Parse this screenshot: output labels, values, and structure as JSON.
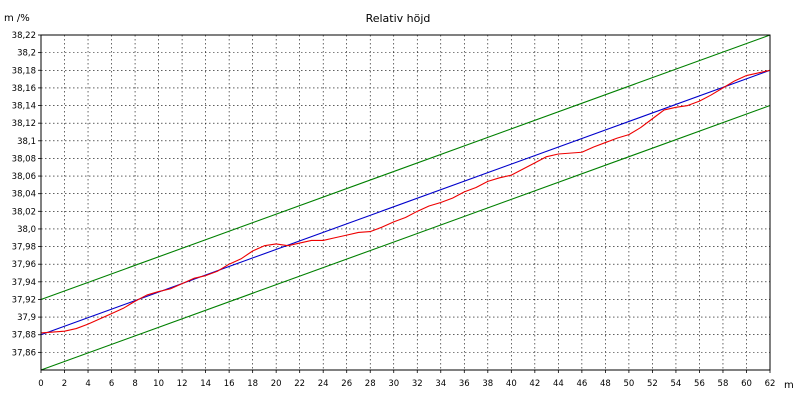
{
  "chart_data": {
    "type": "line",
    "title": "Relativ höjd",
    "ylabel": "m /%",
    "xlabel": "m",
    "xlim": [
      0,
      62
    ],
    "ylim": [
      37.84,
      38.22
    ],
    "x_ticks": [
      0,
      2,
      4,
      6,
      8,
      10,
      12,
      14,
      16,
      18,
      20,
      22,
      24,
      26,
      28,
      30,
      32,
      34,
      36,
      38,
      40,
      42,
      44,
      46,
      48,
      50,
      52,
      54,
      56,
      58,
      60,
      62
    ],
    "y_ticks": [
      37.86,
      37.88,
      37.9,
      37.92,
      37.94,
      37.96,
      37.98,
      38.0,
      38.02,
      38.04,
      38.06,
      38.08,
      38.1,
      38.12,
      38.14,
      38.16,
      38.18,
      38.2,
      38.22
    ],
    "y_tick_labels": [
      "37,86",
      "37,88",
      "37,9",
      "37,92",
      "37,94",
      "37,96",
      "37,98",
      "38,0",
      "38,02",
      "38,04",
      "38,06",
      "38,08",
      "38,1",
      "38,12",
      "38,14",
      "38,16",
      "38,18",
      "38,2",
      "38,22"
    ],
    "grid": true,
    "colors": {
      "upper_tolerance": "#008000",
      "lower_tolerance": "#008000",
      "reference": "#0000cc",
      "measured": "#ee0000",
      "grid": "#000000"
    },
    "series": [
      {
        "role": "upper_tolerance",
        "x": [
          0,
          62
        ],
        "y": [
          37.92,
          38.22
        ]
      },
      {
        "role": "reference",
        "x": [
          0,
          62
        ],
        "y": [
          37.88,
          38.18
        ]
      },
      {
        "role": "lower_tolerance",
        "x": [
          0,
          62
        ],
        "y": [
          37.84,
          38.14
        ]
      },
      {
        "role": "measured",
        "x": [
          0,
          1,
          2,
          3,
          4,
          5,
          6,
          7,
          8,
          9,
          10,
          11,
          12,
          13,
          14,
          15,
          16,
          17,
          18,
          19,
          20,
          21,
          22,
          23,
          24,
          25,
          26,
          27,
          28,
          29,
          30,
          31,
          32,
          33,
          34,
          35,
          36,
          37,
          38,
          39,
          40,
          41,
          42,
          43,
          44,
          45,
          46,
          47,
          48,
          49,
          50,
          51,
          52,
          53,
          54,
          55,
          56,
          57,
          58,
          59,
          60,
          61,
          62
        ],
        "y": [
          37.882,
          37.883,
          37.884,
          37.887,
          37.892,
          37.898,
          37.904,
          37.91,
          37.918,
          37.925,
          37.929,
          37.932,
          37.938,
          37.944,
          37.947,
          37.952,
          37.96,
          37.966,
          37.975,
          37.981,
          37.983,
          37.981,
          37.984,
          37.987,
          37.987,
          37.99,
          37.993,
          37.996,
          37.997,
          38.002,
          38.008,
          38.013,
          38.02,
          38.026,
          38.03,
          38.035,
          38.042,
          38.047,
          38.054,
          38.058,
          38.061,
          38.068,
          38.075,
          38.082,
          38.085,
          38.086,
          38.087,
          38.093,
          38.098,
          38.103,
          38.107,
          38.115,
          38.125,
          38.135,
          38.138,
          38.14,
          38.145,
          38.152,
          38.16,
          38.168,
          38.174,
          38.177,
          38.18
        ]
      }
    ]
  }
}
